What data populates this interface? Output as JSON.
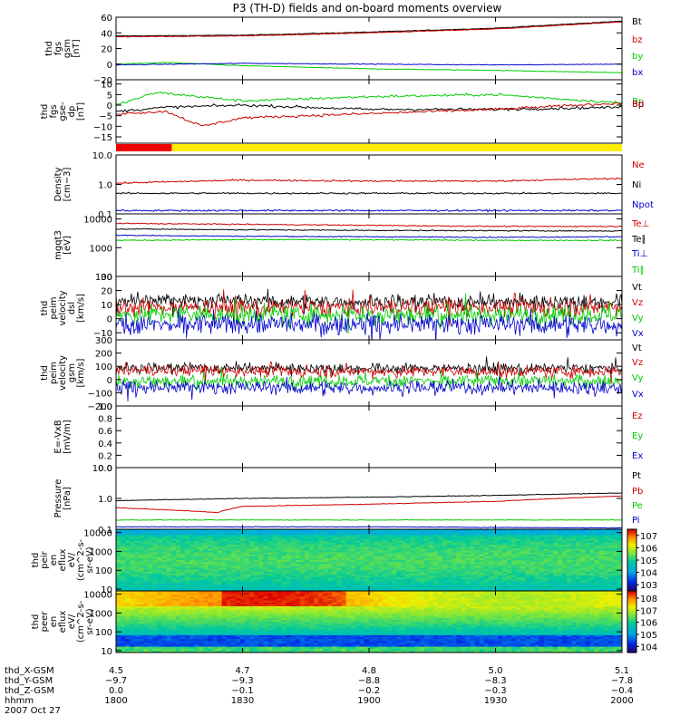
{
  "chart_data": {
    "type": "line",
    "title": "P3 (TH-D) fields and on-board moments overview",
    "x_axis": {
      "rows": [
        {
          "name": "thd_X-GSM",
          "values": [
            "4.5",
            "4.7",
            "4.8",
            "5.0",
            "5.1"
          ]
        },
        {
          "name": "thd_Y-GSM",
          "values": [
            "-9.7",
            "-9.3",
            "-8.8",
            "-8.3",
            "-7.8"
          ]
        },
        {
          "name": "thd_Z-GSM",
          "values": [
            "0.0",
            "-0.1",
            "-0.2",
            "-0.3",
            "-0.4"
          ]
        },
        {
          "name": "hhmm",
          "values": [
            "1800",
            "1830",
            "1900",
            "1930",
            "2000"
          ]
        }
      ],
      "date": "2007 Oct 27",
      "time_range_hhmm": [
        1800,
        2000
      ]
    },
    "panels": [
      {
        "id": "fgs_gsm",
        "ylabel": [
          "thd",
          "fgs",
          "gsm",
          "[nT]"
        ],
        "ylim": [
          -20,
          60
        ],
        "scale": "linear",
        "ticks": [
          "60",
          "40",
          "20",
          "0",
          "−20"
        ],
        "series": [
          {
            "name": "Bt",
            "color": "#000000",
            "x": [
              0,
              0.25,
              0.5,
              0.75,
              1
            ],
            "y": [
              36,
              37,
              41,
              46,
              55
            ]
          },
          {
            "name": "bz",
            "color": "#cc0000",
            "x": [
              0,
              0.25,
              0.5,
              0.75,
              1
            ],
            "y": [
              35,
              36,
              40,
              45,
              54
            ]
          },
          {
            "name": "by",
            "color": "#00cc00",
            "x": [
              0,
              0.1,
              0.25,
              0.5,
              0.75,
              1
            ],
            "y": [
              0,
              2,
              -2,
              -6,
              -8,
              -11
            ]
          },
          {
            "name": "bx",
            "color": "#0000cc",
            "x": [
              0,
              0.25,
              0.5,
              0.75,
              1
            ],
            "y": [
              -1,
              1,
              0,
              -1,
              0
            ]
          }
        ]
      },
      {
        "id": "fgs_gse_dp",
        "ylabel": [
          "thd",
          "fgs",
          "gse-",
          "dp",
          "[nT]"
        ],
        "ylim": [
          -18,
          12
        ],
        "scale": "linear",
        "ticks": [
          "10",
          "5",
          "0",
          "−5",
          "−10",
          "−15"
        ],
        "series": [
          {
            "name": "Br",
            "color": "#00cc00",
            "x": [
              0,
              0.08,
              0.25,
              0.5,
              0.75,
              1
            ],
            "y": [
              0,
              6,
              2,
              4,
              5,
              1
            ]
          },
          {
            "name": "Bp",
            "color": "#000000",
            "x": [
              0,
              0.1,
              0.25,
              0.5,
              0.75,
              1
            ],
            "y": [
              -3,
              -1,
              0,
              -2,
              -2,
              -1
            ]
          },
          {
            "name": "Bd",
            "color": "#cc0000",
            "x": [
              0,
              0.1,
              0.17,
              0.25,
              0.5,
              0.75,
              1
            ],
            "y": [
              -4,
              -3,
              -10,
              -6,
              -4,
              -2,
              1
            ]
          }
        ]
      },
      {
        "id": "density",
        "ylabel": [
          "Density",
          "[cm−3]"
        ],
        "ylim": [
          0.1,
          10
        ],
        "scale": "log",
        "ticks": [
          "10.0",
          "1.0",
          "0.1"
        ],
        "series": [
          {
            "name": "Ne",
            "color": "#cc0000",
            "x": [
              0,
              0.25,
              0.5,
              0.75,
              1
            ],
            "y": [
              1.1,
              1.4,
              1.3,
              1.3,
              1.6
            ]
          },
          {
            "name": "Ni",
            "color": "#000000",
            "x": [
              0,
              0.25,
              0.5,
              0.75,
              1
            ],
            "y": [
              0.5,
              0.5,
              0.5,
              0.5,
              0.5
            ]
          },
          {
            "name": "Npot",
            "color": "#0000cc",
            "x": [
              0,
              0.5,
              1
            ],
            "y": [
              0.13,
              0.13,
              0.13
            ]
          }
        ]
      },
      {
        "id": "temperature",
        "ylabel": [
          "mgqt3",
          "[eV]"
        ],
        "ylim": [
          100,
          15000
        ],
        "scale": "log",
        "ticks": [
          "10000",
          "1000",
          "100"
        ],
        "series": [
          {
            "name": "Te⊥",
            "color": "#cc0000",
            "x": [
              0,
              0.25,
              0.5,
              0.75,
              1
            ],
            "y": [
              7000,
              6500,
              6000,
              5500,
              5500
            ]
          },
          {
            "name": "Te∥",
            "color": "#000000",
            "x": [
              0,
              0.25,
              0.5,
              0.75,
              1
            ],
            "y": [
              4500,
              4200,
              4000,
              3900,
              3800
            ]
          },
          {
            "name": "Ti⊥",
            "color": "#0000cc",
            "x": [
              0,
              0.25,
              0.5,
              0.75,
              1
            ],
            "y": [
              2700,
              2500,
              2400,
              2300,
              2400
            ]
          },
          {
            "name": "Ti∥",
            "color": "#00cc00",
            "x": [
              0,
              0.25,
              0.5,
              0.75,
              1
            ],
            "y": [
              1800,
              1900,
              1900,
              1800,
              1800
            ]
          }
        ]
      },
      {
        "id": "peim_velocity_dsl",
        "ylabel": [
          "thd",
          "peim",
          "velocity",
          "dsl",
          "[km/s]"
        ],
        "ylim": [
          -15,
          30
        ],
        "scale": "linear",
        "ticks": [
          "30",
          "20",
          "10",
          "0",
          "−10"
        ],
        "series": [
          {
            "name": "Vt",
            "color": "#000000",
            "x": [
              0,
              0.5,
              1
            ],
            "y": [
              13,
              12,
              12
            ]
          },
          {
            "name": "Vz",
            "color": "#cc0000",
            "x": [
              0,
              0.5,
              1
            ],
            "y": [
              8,
              8,
              8
            ]
          },
          {
            "name": "Vy",
            "color": "#00cc00",
            "x": [
              0,
              0.5,
              1
            ],
            "y": [
              3,
              3,
              3
            ]
          },
          {
            "name": "Vx",
            "color": "#0000cc",
            "x": [
              0,
              0.5,
              1
            ],
            "y": [
              -4,
              -4,
              -4
            ]
          }
        ]
      },
      {
        "id": "peim_velocity_gsm",
        "ylabel": [
          "thd",
          "peim",
          "velocity",
          "gsm",
          "[km/s]"
        ],
        "ylim": [
          -200,
          300
        ],
        "scale": "linear",
        "ticks": [
          "300",
          "200",
          "100",
          "0",
          "−100",
          "−200"
        ],
        "series": [
          {
            "name": "Vt",
            "color": "#000000",
            "x": [
              0,
              0.5,
              1
            ],
            "y": [
              90,
              85,
              85
            ]
          },
          {
            "name": "Vz",
            "color": "#cc0000",
            "x": [
              0,
              0.5,
              1
            ],
            "y": [
              70,
              60,
              60
            ]
          },
          {
            "name": "Vy",
            "color": "#00cc00",
            "x": [
              0,
              0.5,
              1
            ],
            "y": [
              -10,
              -10,
              -10
            ]
          },
          {
            "name": "Vx",
            "color": "#0000cc",
            "x": [
              0,
              0.5,
              1
            ],
            "y": [
              -60,
              -60,
              -60
            ]
          }
        ]
      },
      {
        "id": "e_vxb",
        "ylabel": [
          "E=-VxB",
          "[mV/m]"
        ],
        "ylim": [
          0,
          1
        ],
        "scale": "linear",
        "ticks": [
          "1.0",
          "0.8",
          "0.6",
          "0.4",
          "0.2",
          "0.0"
        ],
        "series": [
          {
            "name": "Ez",
            "color": "#cc0000"
          },
          {
            "name": "Ey",
            "color": "#00cc00"
          },
          {
            "name": "Ex",
            "color": "#0000cc"
          }
        ]
      },
      {
        "id": "pressure",
        "ylabel": [
          "Pressure",
          "[nPa]"
        ],
        "ylim": [
          0.1,
          10
        ],
        "scale": "log",
        "ticks": [
          "10.0",
          "1.0",
          "0.1"
        ],
        "series": [
          {
            "name": "Pt",
            "color": "#000000",
            "x": [
              0,
              0.25,
              0.5,
              0.75,
              1
            ],
            "y": [
              0.85,
              1.0,
              1.1,
              1.25,
              1.5
            ]
          },
          {
            "name": "Pb",
            "color": "#cc0000",
            "x": [
              0,
              0.2,
              0.25,
              0.5,
              0.75,
              1
            ],
            "y": [
              0.5,
              0.35,
              0.55,
              0.65,
              0.8,
              1.2
            ]
          },
          {
            "name": "Pe",
            "color": "#00cc00",
            "x": [
              0,
              0.5,
              1
            ],
            "y": [
              0.2,
              0.2,
              0.2
            ]
          },
          {
            "name": "Pi",
            "color": "#0000cc",
            "x": [
              0,
              0.5,
              1
            ],
            "y": [
              0.12,
              0.12,
              0.11
            ]
          }
        ]
      },
      {
        "id": "peir_spectrogram",
        "type": "heatmap",
        "ylabel": [
          "thd",
          "peir",
          "en",
          "eflux",
          "eV/",
          "(cm^2-s-",
          "sr-eV)"
        ],
        "ylim": [
          8,
          15000
        ],
        "scale": "log",
        "ticks": [
          "10000",
          "1000",
          "100",
          "10"
        ],
        "colorbar": {
          "ticks": [
            "10^7",
            "10^6",
            "10^5",
            "10^4",
            "10^3"
          ],
          "range_log10": [
            2.5,
            7.5
          ]
        }
      },
      {
        "id": "peer_spectrogram",
        "type": "heatmap",
        "ylabel": [
          "thd",
          "peer",
          "en",
          "eflux",
          "eV/",
          "(cm^2-s-",
          "sr-eV)"
        ],
        "ylim": [
          8,
          15000
        ],
        "scale": "log",
        "ticks": [
          "10000",
          "1000",
          "100",
          "10"
        ],
        "colorbar": {
          "ticks": [
            "10^8",
            "10^7",
            "10^6",
            "10^5",
            "10^4"
          ],
          "range_log10": [
            3.5,
            8.6
          ]
        }
      }
    ],
    "mode_bar": {
      "colors": {
        "primary": "#ee0000",
        "secondary": "#ffee00"
      },
      "red_fraction": 0.11
    }
  }
}
